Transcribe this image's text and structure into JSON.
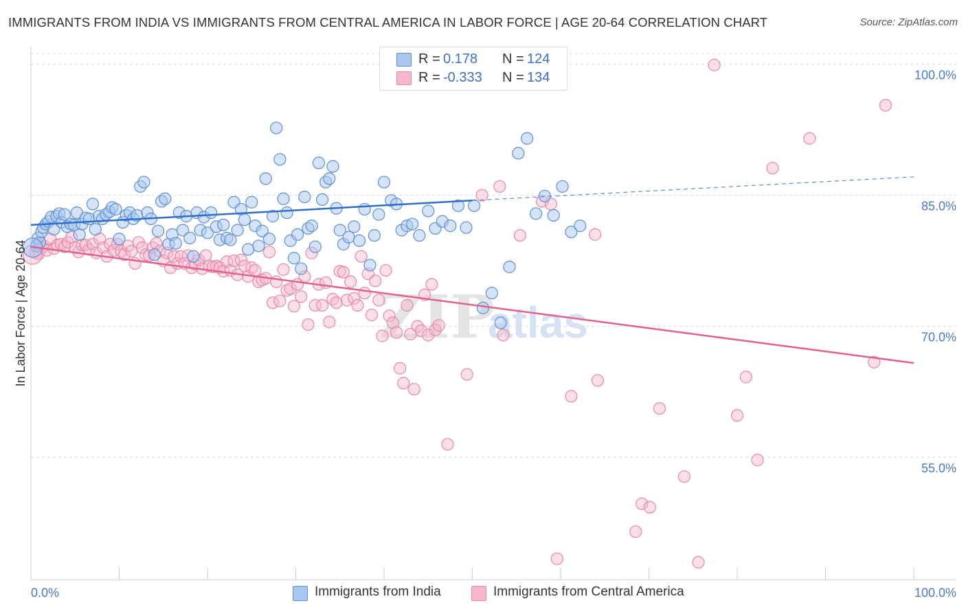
{
  "header": {
    "title": "IMMIGRANTS FROM INDIA VS IMMIGRANTS FROM CENTRAL AMERICA IN LABOR FORCE | AGE 20-64 CORRELATION CHART",
    "source": "Source: ZipAtlas.com"
  },
  "legend": {
    "india": {
      "r_label": "R =",
      "r_value": "0.178",
      "n_label": "N =",
      "n_value": "124"
    },
    "central_america": {
      "r_label": "R =",
      "r_value": "-0.333",
      "n_label": "N =",
      "n_value": "134"
    }
  },
  "bottom_legend": {
    "india": "Immigrants from India",
    "central_america": "Immigrants from Central America"
  },
  "colors": {
    "india_fill": "#a9c8f0",
    "india_stroke": "#5b8fd6",
    "india_line": "#2f6fc9",
    "ca_fill": "#f7b8cc",
    "ca_stroke": "#e887a7",
    "ca_line": "#e0608e",
    "tick_text": "#4a78c8",
    "grid": "#d8d8d8"
  },
  "chart_data": {
    "type": "scatter",
    "title": "IMMIGRANTS FROM INDIA VS IMMIGRANTS FROM CENTRAL AMERICA IN LABOR FORCE | AGE 20-64 CORRELATION CHART",
    "xlabel": "",
    "ylabel": "In Labor Force | Age 20-64",
    "xlim": [
      0,
      100
    ],
    "ylim": [
      41,
      102
    ],
    "x_tick_labels": [
      "0.0%",
      "100.0%"
    ],
    "y_ticks": [
      55,
      70,
      85,
      100
    ],
    "y_tick_labels": [
      "55.0%",
      "70.0%",
      "85.0%",
      "100.0%"
    ],
    "grid": true,
    "legend_position": "top-center",
    "watermark": "ZIPatlas",
    "series": [
      {
        "name": "Immigrants from India",
        "r": 0.178,
        "n": 124,
        "trend": {
          "x0": 0,
          "y0": 81.6,
          "x1": 50,
          "y1": 84.4,
          "dashed_to_x": 100,
          "dashed_to_y": 87.1
        },
        "points": [
          [
            0.6,
            79.2
          ],
          [
            0.8,
            80.1
          ],
          [
            1.0,
            79.6
          ],
          [
            1.2,
            80.8
          ],
          [
            1.4,
            81.3
          ],
          [
            1.7,
            81.7
          ],
          [
            2.0,
            82.0
          ],
          [
            2.3,
            82.5
          ],
          [
            2.6,
            81.1
          ],
          [
            2.9,
            82.6
          ],
          [
            3.2,
            82.9
          ],
          [
            3.5,
            81.9
          ],
          [
            3.8,
            82.8
          ],
          [
            4.1,
            81.4
          ],
          [
            4.5,
            81.7
          ],
          [
            4.9,
            81.6
          ],
          [
            5.2,
            83.0
          ],
          [
            5.5,
            80.5
          ],
          [
            5.8,
            81.7
          ],
          [
            6.2,
            82.4
          ],
          [
            6.6,
            82.3
          ],
          [
            7.0,
            84.0
          ],
          [
            7.3,
            81.1
          ],
          [
            7.7,
            82.6
          ],
          [
            8.1,
            82.3
          ],
          [
            8.5,
            82.8
          ],
          [
            8.9,
            83.1
          ],
          [
            9.2,
            83.6
          ],
          [
            9.6,
            83.4
          ],
          [
            10.0,
            80.0
          ],
          [
            10.4,
            81.9
          ],
          [
            10.8,
            82.7
          ],
          [
            11.2,
            83.0
          ],
          [
            11.6,
            82.3
          ],
          [
            12.0,
            82.7
          ],
          [
            12.4,
            86.0
          ],
          [
            12.8,
            86.5
          ],
          [
            13.2,
            83.0
          ],
          [
            13.6,
            82.3
          ],
          [
            14.0,
            78.2
          ],
          [
            14.4,
            80.9
          ],
          [
            14.8,
            84.3
          ],
          [
            15.2,
            84.6
          ],
          [
            15.6,
            79.4
          ],
          [
            16.0,
            80.5
          ],
          [
            16.4,
            79.5
          ],
          [
            16.8,
            83.0
          ],
          [
            17.2,
            81.0
          ],
          [
            17.6,
            82.6
          ],
          [
            18.0,
            80.1
          ],
          [
            18.4,
            78.0
          ],
          [
            18.8,
            83.0
          ],
          [
            19.2,
            81.0
          ],
          [
            19.6,
            82.5
          ],
          [
            20.0,
            80.7
          ],
          [
            20.4,
            83.0
          ],
          [
            21.0,
            81.4
          ],
          [
            21.4,
            79.9
          ],
          [
            21.8,
            81.6
          ],
          [
            22.2,
            80.1
          ],
          [
            22.6,
            79.9
          ],
          [
            23.0,
            84.2
          ],
          [
            23.4,
            81.0
          ],
          [
            23.8,
            83.4
          ],
          [
            24.2,
            82.2
          ],
          [
            24.6,
            78.8
          ],
          [
            25.0,
            84.2
          ],
          [
            25.4,
            81.5
          ],
          [
            25.8,
            79.2
          ],
          [
            26.2,
            80.9
          ],
          [
            26.6,
            86.9
          ],
          [
            27.0,
            80.0
          ],
          [
            27.4,
            82.6
          ],
          [
            27.8,
            92.7
          ],
          [
            28.2,
            89.1
          ],
          [
            28.6,
            84.6
          ],
          [
            29.0,
            83.0
          ],
          [
            29.4,
            79.8
          ],
          [
            29.8,
            77.8
          ],
          [
            30.2,
            80.5
          ],
          [
            30.6,
            76.6
          ],
          [
            31.0,
            84.8
          ],
          [
            31.4,
            81.2
          ],
          [
            31.8,
            81.5
          ],
          [
            32.2,
            79.1
          ],
          [
            32.6,
            88.7
          ],
          [
            33.0,
            84.5
          ],
          [
            33.4,
            86.5
          ],
          [
            33.8,
            86.9
          ],
          [
            34.2,
            88.3
          ],
          [
            34.6,
            83.5
          ],
          [
            35.0,
            81.0
          ],
          [
            35.4,
            79.4
          ],
          [
            36.0,
            80.2
          ],
          [
            36.6,
            81.4
          ],
          [
            37.2,
            79.8
          ],
          [
            37.8,
            83.4
          ],
          [
            38.4,
            77.0
          ],
          [
            38.9,
            80.4
          ],
          [
            39.4,
            82.8
          ],
          [
            40.0,
            86.5
          ],
          [
            40.8,
            84.4
          ],
          [
            41.4,
            84.0
          ],
          [
            42.0,
            81.0
          ],
          [
            42.6,
            81.5
          ],
          [
            43.2,
            81.7
          ],
          [
            44.0,
            80.4
          ],
          [
            45.0,
            83.2
          ],
          [
            45.8,
            81.2
          ],
          [
            46.6,
            82.0
          ],
          [
            47.5,
            81.5
          ],
          [
            48.4,
            83.8
          ],
          [
            49.3,
            81.3
          ],
          [
            50.2,
            83.8
          ],
          [
            51.2,
            72.1
          ],
          [
            52.2,
            73.8
          ],
          [
            53.2,
            70.4
          ],
          [
            54.2,
            76.8
          ],
          [
            55.2,
            89.8
          ],
          [
            56.2,
            91.5
          ],
          [
            57.2,
            82.9
          ],
          [
            58.2,
            84.9
          ],
          [
            59.2,
            82.7
          ],
          [
            60.2,
            86.0
          ],
          [
            61.2,
            80.8
          ],
          [
            62.2,
            81.5
          ]
        ],
        "points_note": "approximate; read from chart"
      },
      {
        "name": "Immigrants from Central America",
        "r": -0.333,
        "n": 134,
        "trend": {
          "x0": 0,
          "y0": 79.1,
          "x1": 100,
          "y1": 65.8
        },
        "points": [
          [
            0.5,
            78.4
          ],
          [
            0.7,
            79.4
          ],
          [
            0.9,
            78.3
          ],
          [
            1.2,
            79.0
          ],
          [
            1.5,
            79.2
          ],
          [
            1.8,
            78.7
          ],
          [
            2.2,
            80.0
          ],
          [
            2.6,
            78.9
          ],
          [
            3.0,
            79.3
          ],
          [
            3.4,
            79.4
          ],
          [
            3.8,
            79.1
          ],
          [
            4.2,
            79.6
          ],
          [
            4.6,
            80.2
          ],
          [
            5.0,
            79.0
          ],
          [
            5.4,
            78.5
          ],
          [
            5.8,
            79.3
          ],
          [
            6.2,
            79.3
          ],
          [
            6.6,
            78.8
          ],
          [
            7.0,
            79.4
          ],
          [
            7.4,
            78.4
          ],
          [
            7.8,
            80.0
          ],
          [
            8.2,
            79.0
          ],
          [
            8.6,
            78.0
          ],
          [
            9.0,
            79.4
          ],
          [
            9.4,
            78.7
          ],
          [
            9.8,
            79.4
          ],
          [
            10.2,
            78.6
          ],
          [
            10.6,
            78.2
          ],
          [
            11.0,
            79.2
          ],
          [
            11.4,
            78.6
          ],
          [
            11.8,
            77.2
          ],
          [
            12.2,
            79.6
          ],
          [
            12.6,
            79.0
          ],
          [
            13.0,
            78.2
          ],
          [
            13.4,
            78.1
          ],
          [
            13.8,
            79.0
          ],
          [
            14.2,
            79.5
          ],
          [
            14.6,
            78.6
          ],
          [
            15.0,
            77.5
          ],
          [
            15.4,
            78.4
          ],
          [
            15.8,
            76.7
          ],
          [
            16.2,
            78.0
          ],
          [
            16.6,
            77.2
          ],
          [
            17.0,
            78.0
          ],
          [
            17.4,
            77.2
          ],
          [
            17.8,
            78.1
          ],
          [
            18.2,
            76.7
          ],
          [
            18.6,
            77.1
          ],
          [
            19.0,
            77.6
          ],
          [
            19.4,
            76.6
          ],
          [
            19.8,
            78.1
          ],
          [
            20.2,
            76.9
          ],
          [
            20.6,
            76.8
          ],
          [
            21.0,
            76.9
          ],
          [
            21.4,
            76.7
          ],
          [
            21.8,
            76.3
          ],
          [
            22.2,
            77.4
          ],
          [
            22.6,
            76.4
          ],
          [
            23.0,
            77.5
          ],
          [
            23.4,
            75.9
          ],
          [
            23.8,
            77.6
          ],
          [
            24.2,
            76.9
          ],
          [
            24.6,
            75.7
          ],
          [
            25.0,
            76.7
          ],
          [
            25.4,
            76.4
          ],
          [
            25.8,
            75.1
          ],
          [
            26.2,
            75.3
          ],
          [
            26.6,
            75.5
          ],
          [
            27.0,
            78.5
          ],
          [
            27.4,
            72.7
          ],
          [
            27.8,
            75.1
          ],
          [
            28.2,
            72.9
          ],
          [
            28.6,
            76.5
          ],
          [
            29.0,
            74.1
          ],
          [
            29.4,
            74.3
          ],
          [
            29.8,
            72.3
          ],
          [
            30.2,
            74.8
          ],
          [
            30.6,
            73.4
          ],
          [
            31.0,
            75.7
          ],
          [
            31.4,
            70.2
          ],
          [
            31.8,
            78.4
          ],
          [
            32.2,
            72.4
          ],
          [
            32.6,
            74.8
          ],
          [
            33.0,
            72.4
          ],
          [
            33.4,
            75.0
          ],
          [
            33.8,
            70.5
          ],
          [
            34.2,
            73.1
          ],
          [
            34.6,
            72.7
          ],
          [
            35.0,
            76.3
          ],
          [
            35.4,
            76.2
          ],
          [
            35.8,
            73.0
          ],
          [
            36.2,
            75.1
          ],
          [
            36.6,
            73.2
          ],
          [
            37.0,
            72.4
          ],
          [
            37.4,
            78.0
          ],
          [
            37.8,
            73.8
          ],
          [
            38.2,
            76.0
          ],
          [
            38.6,
            71.3
          ],
          [
            39.0,
            75.2
          ],
          [
            39.4,
            73.0
          ],
          [
            39.8,
            68.9
          ],
          [
            40.2,
            76.4
          ],
          [
            40.6,
            71.2
          ],
          [
            41.0,
            70.4
          ],
          [
            41.4,
            69.3
          ],
          [
            41.8,
            65.2
          ],
          [
            42.2,
            63.5
          ],
          [
            42.6,
            72.4
          ],
          [
            43.0,
            69.1
          ],
          [
            43.4,
            62.8
          ],
          [
            43.8,
            70.0
          ],
          [
            44.2,
            69.5
          ],
          [
            44.6,
            73.6
          ],
          [
            45.0,
            69.0
          ],
          [
            45.4,
            74.8
          ],
          [
            45.8,
            69.6
          ],
          [
            46.2,
            70.1
          ],
          [
            47.2,
            56.5
          ],
          [
            49.4,
            64.5
          ],
          [
            51.1,
            85.0
          ],
          [
            53.1,
            86.0
          ],
          [
            53.5,
            69.0
          ],
          [
            55.4,
            80.4
          ],
          [
            57.9,
            84.3
          ],
          [
            58.9,
            84.0
          ],
          [
            59.6,
            43.4
          ],
          [
            61.2,
            62.0
          ],
          [
            63.9,
            80.5
          ],
          [
            64.2,
            63.8
          ],
          [
            68.5,
            46.5
          ],
          [
            69.2,
            49.7
          ],
          [
            70.1,
            49.3
          ],
          [
            71.2,
            60.6
          ],
          [
            74.0,
            52.8
          ],
          [
            75.6,
            43.0
          ],
          [
            77.4,
            99.9
          ],
          [
            80.0,
            59.8
          ],
          [
            81.0,
            64.2
          ],
          [
            82.3,
            54.7
          ],
          [
            84.0,
            88.1
          ],
          [
            88.2,
            91.5
          ],
          [
            95.5,
            65.9
          ],
          [
            96.8,
            95.3
          ]
        ],
        "points_note": "approximate; read from chart"
      }
    ]
  }
}
